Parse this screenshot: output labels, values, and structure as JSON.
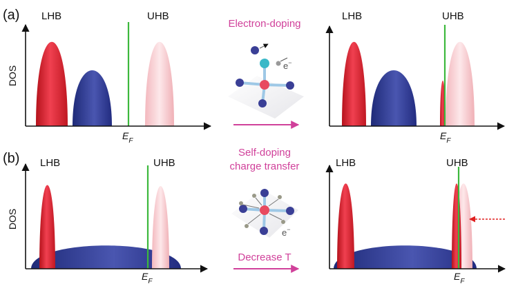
{
  "panels": [
    {
      "label": "(a)",
      "left": {
        "lhb": "LHB",
        "uhb": "UHB",
        "y_axis": "DOS",
        "fermi": {
          "main": "E",
          "sub": "F"
        }
      },
      "middle": {
        "caption": [
          "Electron-doping"
        ],
        "electron": {
          "main": "e",
          "sup": "−"
        }
      },
      "right": {
        "lhb": "LHB",
        "uhb": "UHB",
        "fermi": {
          "main": "E",
          "sub": "F"
        }
      }
    },
    {
      "label": "(b)",
      "left": {
        "lhb": "LHB",
        "uhb": "UHB",
        "y_axis": "DOS",
        "fermi": {
          "main": "E",
          "sub": "F"
        }
      },
      "middle": {
        "caption": [
          "Self-doping",
          "charge transfer"
        ],
        "electron": {
          "main": "e",
          "sup": "−"
        },
        "arrow_label": "Decrease T"
      },
      "right": {
        "lhb": "LHB",
        "uhb": "UHB",
        "fermi": {
          "main": "E",
          "sub": "F"
        }
      }
    }
  ]
}
